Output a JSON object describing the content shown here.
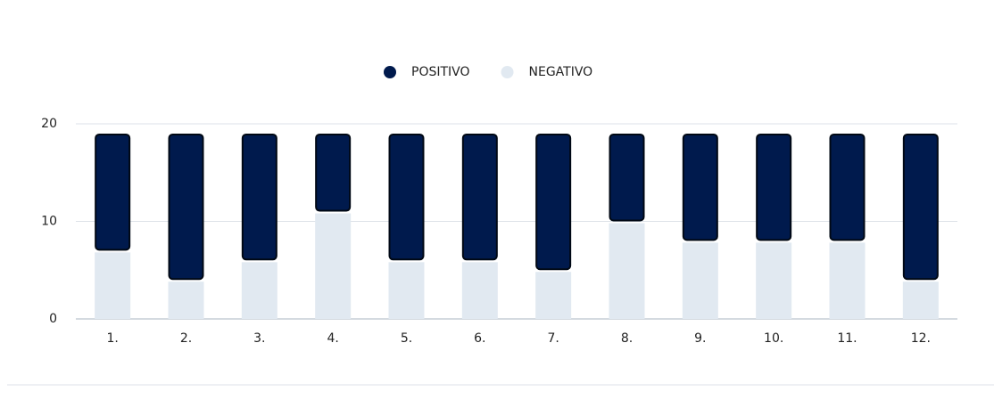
{
  "chart_data": {
    "type": "stacked_bar",
    "categories": [
      "1.",
      "2.",
      "3.",
      "4.",
      "5.",
      "6.",
      "7.",
      "8.",
      "9.",
      "10.",
      "11.",
      "12."
    ],
    "series": [
      {
        "name": "POSITIVO",
        "color": "#001a4d",
        "values": [
          12,
          15,
          13,
          8,
          13,
          13,
          14,
          9,
          11,
          11,
          11,
          15
        ]
      },
      {
        "name": "NEGATIVO",
        "color": "#e1e9f1",
        "values": [
          7,
          4,
          6,
          11,
          6,
          6,
          5,
          10,
          8,
          8,
          8,
          4
        ]
      }
    ],
    "ylim": [
      0,
      20
    ],
    "yticks": [
      0,
      10,
      20
    ],
    "grid": true,
    "legend": "top"
  }
}
